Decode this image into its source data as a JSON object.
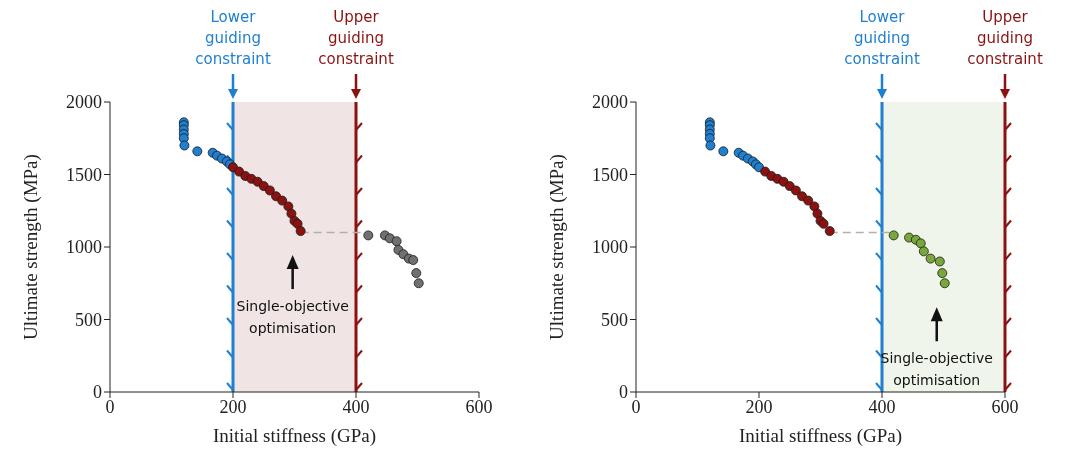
{
  "chart_data": [
    {
      "type": "scatter",
      "xlabel": "Initial stiffness (GPa)",
      "ylabel": "Ultimate strength (MPa)",
      "xlim": [
        0,
        600
      ],
      "ylim": [
        0,
        2000
      ],
      "xticks": [
        0,
        200,
        400,
        600
      ],
      "yticks": [
        0,
        500,
        1000,
        1500,
        2000
      ],
      "grid": false,
      "legend": false,
      "marker": "circle",
      "series": [
        {
          "type": "line",
          "color": "#b0b0b0",
          "line_style": "dashed",
          "marker": "none",
          "x": [
            310,
            420
          ],
          "values": [
            1100,
            1100
          ]
        },
        {
          "color": "#1f7fd0",
          "x": [
            120,
            120,
            120,
            120,
            120,
            121,
            142,
            167,
            174,
            182,
            190,
            195
          ],
          "values": [
            1860,
            1840,
            1810,
            1780,
            1750,
            1700,
            1660,
            1650,
            1630,
            1610,
            1590,
            1570
          ]
        },
        {
          "color": "#8c1212",
          "x": [
            200,
            210,
            220,
            230,
            240,
            250,
            260,
            270,
            280,
            290,
            295,
            300,
            305,
            310
          ],
          "values": [
            1550,
            1520,
            1490,
            1470,
            1450,
            1420,
            1390,
            1350,
            1320,
            1280,
            1230,
            1180,
            1160,
            1110
          ]
        },
        {
          "color": "#707070",
          "x": [
            420,
            447,
            455,
            466,
            469,
            477,
            486,
            493,
            498,
            502
          ],
          "values": [
            1080,
            1080,
            1060,
            1040,
            980,
            950,
            920,
            910,
            820,
            750
          ]
        }
      ],
      "ref_lines": [
        {
          "axis": "x",
          "value": 200,
          "label": "Lower guiding constraint",
          "color": "#1f7fd0"
        },
        {
          "axis": "x",
          "value": 400,
          "label": "Upper guiding constraint",
          "color": "#8c1212"
        }
      ],
      "bands": [
        {
          "axis": "x",
          "from": 200,
          "to": 400,
          "color": "#f0e4e4"
        }
      ],
      "annotations": [
        "Single-objective optimisation"
      ]
    },
    {
      "type": "scatter",
      "xlabel": "Initial stiffness (GPa)",
      "ylabel": "Ultimate strength (MPa)",
      "xlim": [
        0,
        600
      ],
      "ylim": [
        0,
        2000
      ],
      "xticks": [
        0,
        200,
        400,
        600
      ],
      "yticks": [
        0,
        500,
        1000,
        1500,
        2000
      ],
      "grid": false,
      "legend": false,
      "marker": "circle",
      "series": [
        {
          "type": "line",
          "color": "#b0b0b0",
          "line_style": "dashed",
          "marker": "none",
          "x": [
            315,
            417
          ],
          "values": [
            1100,
            1100
          ]
        },
        {
          "color": "#1f7fd0",
          "x": [
            120,
            120,
            120,
            120,
            120,
            121,
            142,
            167,
            174,
            182,
            190,
            195,
            200
          ],
          "values": [
            1860,
            1840,
            1810,
            1780,
            1750,
            1700,
            1660,
            1650,
            1630,
            1610,
            1590,
            1570,
            1550
          ]
        },
        {
          "color": "#8c1212",
          "x": [
            210,
            220,
            230,
            240,
            250,
            260,
            270,
            280,
            290,
            295,
            300,
            305,
            315
          ],
          "values": [
            1520,
            1490,
            1470,
            1450,
            1420,
            1390,
            1350,
            1320,
            1280,
            1230,
            1180,
            1160,
            1110
          ]
        },
        {
          "color": "#78a83a",
          "x": [
            419,
            444,
            455,
            463,
            468,
            479,
            494,
            498,
            502
          ],
          "values": [
            1080,
            1065,
            1050,
            1025,
            970,
            920,
            900,
            820,
            750
          ]
        }
      ],
      "ref_lines": [
        {
          "axis": "x",
          "value": 400,
          "label": "Lower guiding constraint",
          "color": "#1f7fd0"
        },
        {
          "axis": "x",
          "value": 600,
          "label": "Upper guiding constraint",
          "color": "#8c1212"
        }
      ],
      "bands": [
        {
          "axis": "x",
          "from": 400,
          "to": 600,
          "color": "#eff5ea"
        }
      ],
      "annotations": [
        "Single-objective optimisation"
      ]
    }
  ]
}
